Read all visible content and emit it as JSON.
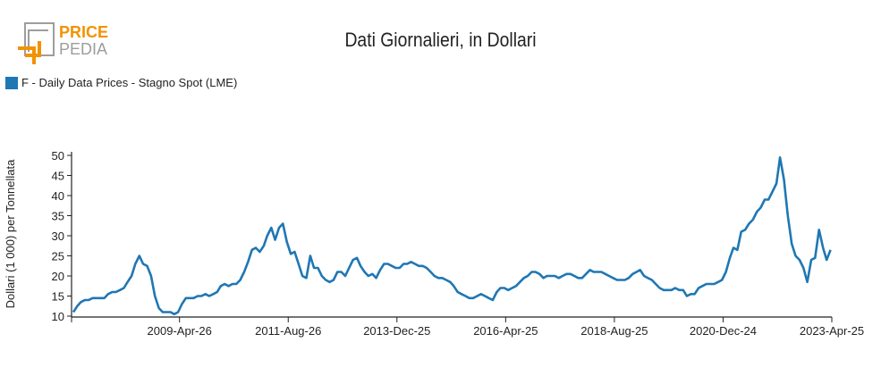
{
  "logo": {
    "text_top": "PRICE",
    "text_bottom": "PEDIA",
    "colors": {
      "orange": "#f39200",
      "gray": "#9d9d9c"
    }
  },
  "chart_data": {
    "type": "line",
    "title": "Dati Giornalieri, in Dollari",
    "xlabel": "",
    "ylabel": "Dollari (1 000) per Tonnellata",
    "ylim": [
      10,
      50
    ],
    "yticks": [
      "10",
      "15",
      "20",
      "25",
      "30",
      "35",
      "40",
      "45",
      "50"
    ],
    "xlim": [
      "2007-01-01",
      "2023-04-25"
    ],
    "xticks": [
      "2009-Apr-26",
      "2011-Aug-26",
      "2013-Dec-25",
      "2016-Apr-25",
      "2018-Aug-25",
      "2020-Dec-24",
      "2023-Apr-25"
    ],
    "grid": false,
    "legend_position": "top-left",
    "series": [
      {
        "name": "F - Daily Data Prices - Stagno Spot (LME)",
        "color": "#1f77b4",
        "points": [
          [
            "2007-01",
            11
          ],
          [
            "2007-02",
            12.5
          ],
          [
            "2007-03",
            13.5
          ],
          [
            "2007-04",
            14
          ],
          [
            "2007-05",
            14
          ],
          [
            "2007-06",
            14.5
          ],
          [
            "2007-07",
            14.5
          ],
          [
            "2007-08",
            14.5
          ],
          [
            "2007-09",
            14.5
          ],
          [
            "2007-10",
            15.5
          ],
          [
            "2007-11",
            16
          ],
          [
            "2007-12",
            16
          ],
          [
            "2008-01",
            16.5
          ],
          [
            "2008-02",
            17
          ],
          [
            "2008-03",
            18.5
          ],
          [
            "2008-04",
            20
          ],
          [
            "2008-05",
            23
          ],
          [
            "2008-06",
            25
          ],
          [
            "2008-07",
            23
          ],
          [
            "2008-08",
            22.5
          ],
          [
            "2008-09",
            20
          ],
          [
            "2008-10",
            15
          ],
          [
            "2008-11",
            12
          ],
          [
            "2008-12",
            11
          ],
          [
            "2009-01",
            11
          ],
          [
            "2009-02",
            11
          ],
          [
            "2009-03",
            10.5
          ],
          [
            "2009-04",
            11
          ],
          [
            "2009-05",
            13
          ],
          [
            "2009-06",
            14.5
          ],
          [
            "2009-07",
            14.5
          ],
          [
            "2009-08",
            14.5
          ],
          [
            "2009-09",
            15
          ],
          [
            "2009-10",
            15
          ],
          [
            "2009-11",
            15.5
          ],
          [
            "2009-12",
            15
          ],
          [
            "2010-01",
            15.5
          ],
          [
            "2010-02",
            16
          ],
          [
            "2010-03",
            17.5
          ],
          [
            "2010-04",
            18
          ],
          [
            "2010-05",
            17.5
          ],
          [
            "2010-06",
            18
          ],
          [
            "2010-07",
            18
          ],
          [
            "2010-08",
            19
          ],
          [
            "2010-09",
            21
          ],
          [
            "2010-10",
            23.5
          ],
          [
            "2010-11",
            26.5
          ],
          [
            "2010-12",
            27
          ],
          [
            "2011-01",
            26
          ],
          [
            "2011-02",
            27.5
          ],
          [
            "2011-03",
            30
          ],
          [
            "2011-04",
            32
          ],
          [
            "2011-05",
            29
          ],
          [
            "2011-06",
            32
          ],
          [
            "2011-07",
            33
          ],
          [
            "2011-08",
            28.5
          ],
          [
            "2011-09",
            25.5
          ],
          [
            "2011-10",
            26
          ],
          [
            "2011-11",
            23
          ],
          [
            "2011-12",
            20
          ],
          [
            "2012-01",
            19.5
          ],
          [
            "2012-02",
            25
          ],
          [
            "2012-03",
            22
          ],
          [
            "2012-04",
            22
          ],
          [
            "2012-05",
            20
          ],
          [
            "2012-06",
            19
          ],
          [
            "2012-07",
            18.5
          ],
          [
            "2012-08",
            19
          ],
          [
            "2012-09",
            21
          ],
          [
            "2012-10",
            21
          ],
          [
            "2012-11",
            20
          ],
          [
            "2012-12",
            22
          ],
          [
            "2013-01",
            24
          ],
          [
            "2013-02",
            24.5
          ],
          [
            "2013-03",
            22.5
          ],
          [
            "2013-04",
            21
          ],
          [
            "2013-05",
            20
          ],
          [
            "2013-06",
            20.5
          ],
          [
            "2013-07",
            19.5
          ],
          [
            "2013-08",
            21.5
          ],
          [
            "2013-09",
            23
          ],
          [
            "2013-10",
            23
          ],
          [
            "2013-11",
            22.5
          ],
          [
            "2013-12",
            22
          ],
          [
            "2014-01",
            22
          ],
          [
            "2014-02",
            23
          ],
          [
            "2014-03",
            23
          ],
          [
            "2014-04",
            23.5
          ],
          [
            "2014-05",
            23
          ],
          [
            "2014-06",
            22.5
          ],
          [
            "2014-07",
            22.5
          ],
          [
            "2014-08",
            22
          ],
          [
            "2014-09",
            21
          ],
          [
            "2014-10",
            20
          ],
          [
            "2014-11",
            19.5
          ],
          [
            "2014-12",
            19.5
          ],
          [
            "2015-01",
            19
          ],
          [
            "2015-02",
            18.5
          ],
          [
            "2015-03",
            17.5
          ],
          [
            "2015-04",
            16
          ],
          [
            "2015-05",
            15.5
          ],
          [
            "2015-06",
            15
          ],
          [
            "2015-07",
            14.5
          ],
          [
            "2015-08",
            14.5
          ],
          [
            "2015-09",
            15
          ],
          [
            "2015-10",
            15.5
          ],
          [
            "2015-11",
            15
          ],
          [
            "2015-12",
            14.5
          ],
          [
            "2016-01",
            14
          ],
          [
            "2016-02",
            16
          ],
          [
            "2016-03",
            17
          ],
          [
            "2016-04",
            17
          ],
          [
            "2016-05",
            16.5
          ],
          [
            "2016-06",
            17
          ],
          [
            "2016-07",
            17.5
          ],
          [
            "2016-08",
            18.5
          ],
          [
            "2016-09",
            19.5
          ],
          [
            "2016-10",
            20
          ],
          [
            "2016-11",
            21
          ],
          [
            "2016-12",
            21
          ],
          [
            "2017-01",
            20.5
          ],
          [
            "2017-02",
            19.5
          ],
          [
            "2017-03",
            20
          ],
          [
            "2017-04",
            20
          ],
          [
            "2017-05",
            20
          ],
          [
            "2017-06",
            19.5
          ],
          [
            "2017-07",
            20
          ],
          [
            "2017-08",
            20.5
          ],
          [
            "2017-09",
            20.5
          ],
          [
            "2017-10",
            20
          ],
          [
            "2017-11",
            19.5
          ],
          [
            "2017-12",
            19.5
          ],
          [
            "2018-01",
            20.5
          ],
          [
            "2018-02",
            21.5
          ],
          [
            "2018-03",
            21
          ],
          [
            "2018-04",
            21
          ],
          [
            "2018-05",
            21
          ],
          [
            "2018-06",
            20.5
          ],
          [
            "2018-07",
            20
          ],
          [
            "2018-08",
            19.5
          ],
          [
            "2018-09",
            19
          ],
          [
            "2018-10",
            19
          ],
          [
            "2018-11",
            19
          ],
          [
            "2018-12",
            19.5
          ],
          [
            "2019-01",
            20.5
          ],
          [
            "2019-02",
            21
          ],
          [
            "2019-03",
            21.5
          ],
          [
            "2019-04",
            20
          ],
          [
            "2019-05",
            19.5
          ],
          [
            "2019-06",
            19
          ],
          [
            "2019-07",
            18
          ],
          [
            "2019-08",
            17
          ],
          [
            "2019-09",
            16.5
          ],
          [
            "2019-10",
            16.5
          ],
          [
            "2019-11",
            16.5
          ],
          [
            "2019-12",
            17
          ],
          [
            "2020-01",
            16.5
          ],
          [
            "2020-02",
            16.5
          ],
          [
            "2020-03",
            15
          ],
          [
            "2020-04",
            15.5
          ],
          [
            "2020-05",
            15.5
          ],
          [
            "2020-06",
            17
          ],
          [
            "2020-07",
            17.5
          ],
          [
            "2020-08",
            18
          ],
          [
            "2020-09",
            18
          ],
          [
            "2020-10",
            18
          ],
          [
            "2020-11",
            18.5
          ],
          [
            "2020-12",
            19
          ],
          [
            "2021-01",
            21
          ],
          [
            "2021-02",
            24.5
          ],
          [
            "2021-03",
            27
          ],
          [
            "2021-04",
            26.5
          ],
          [
            "2021-05",
            31
          ],
          [
            "2021-06",
            31.5
          ],
          [
            "2021-07",
            33
          ],
          [
            "2021-08",
            34
          ],
          [
            "2021-09",
            36
          ],
          [
            "2021-10",
            37
          ],
          [
            "2021-11",
            39
          ],
          [
            "2021-12",
            39
          ],
          [
            "2022-01",
            41
          ],
          [
            "2022-02",
            43
          ],
          [
            "2022-03",
            49.5
          ],
          [
            "2022-04",
            44
          ],
          [
            "2022-05",
            35
          ],
          [
            "2022-06",
            28
          ],
          [
            "2022-07",
            25
          ],
          [
            "2022-08",
            24
          ],
          [
            "2022-09",
            22
          ],
          [
            "2022-10",
            18.5
          ],
          [
            "2022-11",
            24
          ],
          [
            "2022-12",
            24.5
          ],
          [
            "2023-01",
            31.5
          ],
          [
            "2023-02",
            27
          ],
          [
            "2023-03",
            24
          ],
          [
            "2023-04",
            26.5
          ]
        ]
      }
    ]
  }
}
